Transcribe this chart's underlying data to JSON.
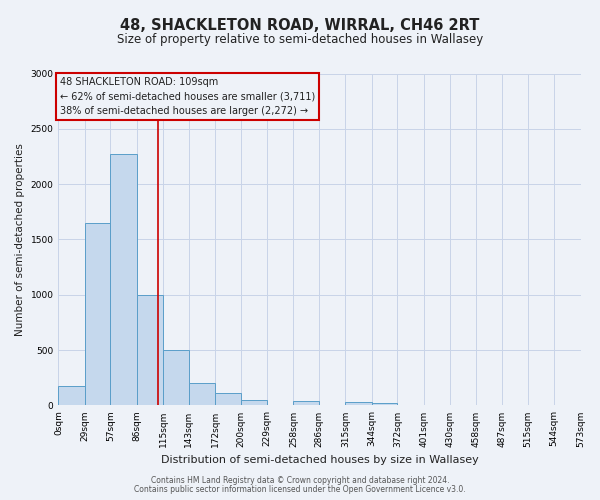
{
  "title": "48, SHACKLETON ROAD, WIRRAL, CH46 2RT",
  "subtitle": "Size of property relative to semi-detached houses in Wallasey",
  "xlabel": "Distribution of semi-detached houses by size in Wallasey",
  "ylabel": "Number of semi-detached properties",
  "bar_color": "#c5d8ed",
  "bar_edge_color": "#5a9ec9",
  "annotation_box_title": "48 SHACKLETON ROAD: 109sqm",
  "annotation_line1": "← 62% of semi-detached houses are smaller (3,711)",
  "annotation_line2": "38% of semi-detached houses are larger (2,272) →",
  "property_size": 109,
  "bin_edges": [
    0,
    29,
    57,
    86,
    115,
    143,
    172,
    200,
    229,
    258,
    286,
    315,
    344,
    372,
    401,
    430,
    458,
    487,
    515,
    544,
    573
  ],
  "bin_counts": [
    175,
    1650,
    2275,
    1000,
    500,
    200,
    110,
    50,
    0,
    40,
    0,
    30,
    20,
    0,
    0,
    0,
    0,
    0,
    0,
    0
  ],
  "ylim": [
    0,
    3000
  ],
  "yticks": [
    0,
    500,
    1000,
    1500,
    2000,
    2500,
    3000
  ],
  "footnote1": "Contains HM Land Registry data © Crown copyright and database right 2024.",
  "footnote2": "Contains public sector information licensed under the Open Government Licence v3.0.",
  "background_color": "#eef2f8",
  "grid_color": "#c8d4e8",
  "red_line_color": "#cc0000",
  "annotation_box_edge": "#cc0000",
  "text_color": "#222222",
  "title_fontsize": 10.5,
  "subtitle_fontsize": 8.5,
  "ylabel_fontsize": 7.5,
  "xlabel_fontsize": 8,
  "tick_fontsize": 6.5,
  "footnote_fontsize": 5.5
}
